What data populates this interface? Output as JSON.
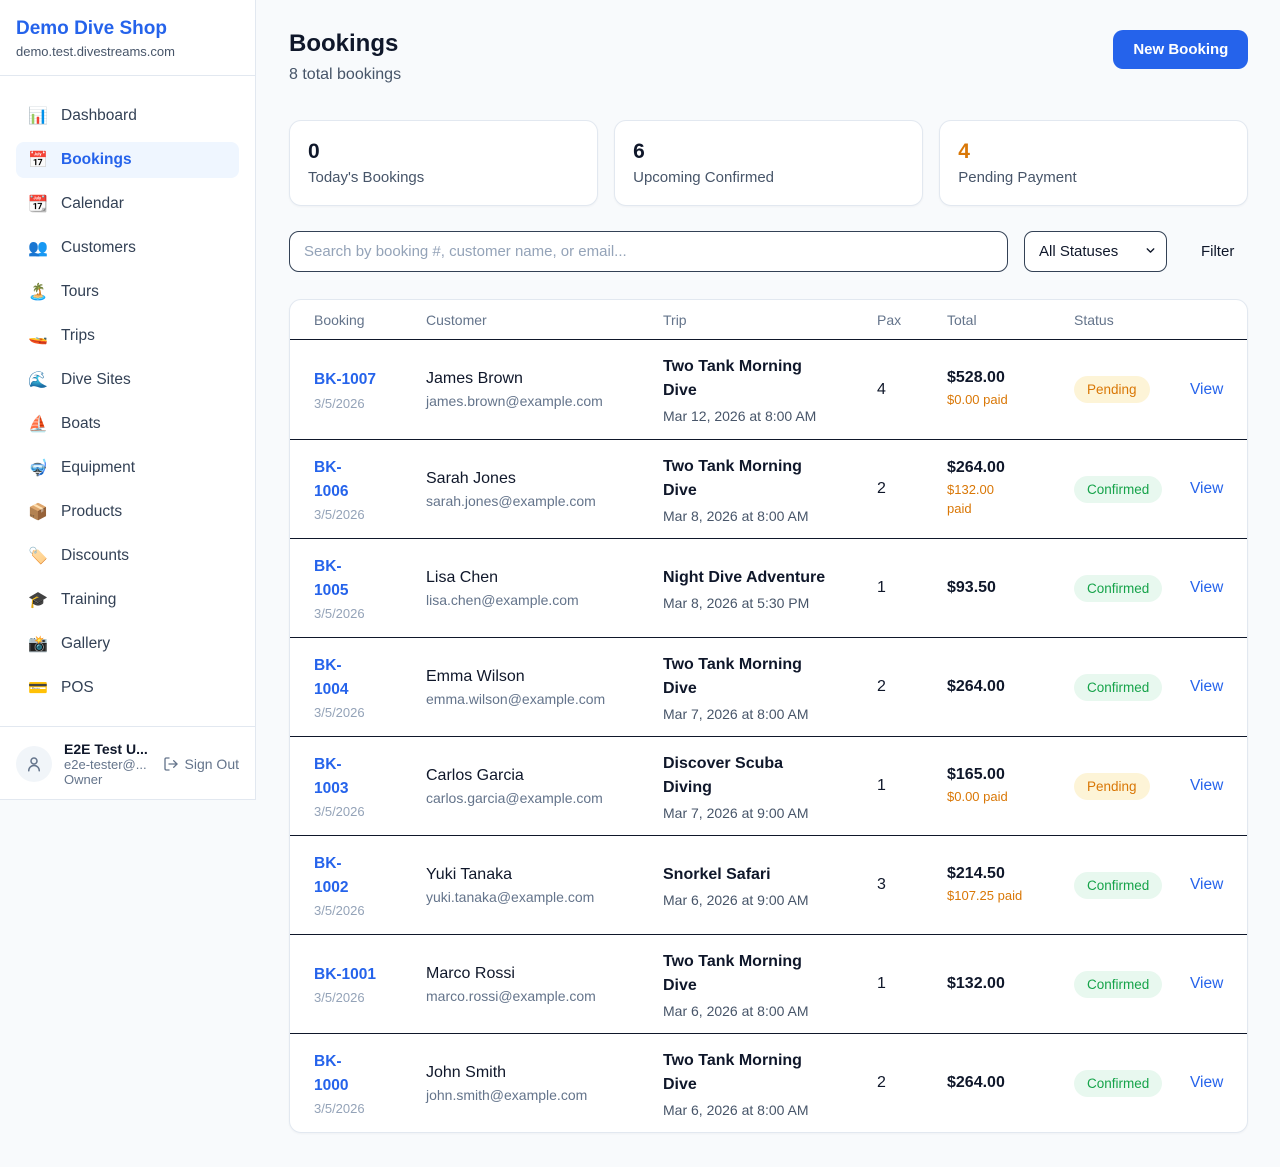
{
  "sidebar": {
    "shop_name": "Demo Dive Shop",
    "domain": "demo.test.divestreams.com",
    "items": [
      {
        "name": "dashboard",
        "icon": "📊",
        "label": "Dashboard",
        "active": false
      },
      {
        "name": "bookings",
        "icon": "📅",
        "label": "Bookings",
        "active": true
      },
      {
        "name": "calendar",
        "icon": "📆",
        "label": "Calendar",
        "active": false
      },
      {
        "name": "customers",
        "icon": "👥",
        "label": "Customers",
        "active": false
      },
      {
        "name": "tours",
        "icon": "🏝️",
        "label": "Tours",
        "active": false
      },
      {
        "name": "trips",
        "icon": "🚤",
        "label": "Trips",
        "active": false
      },
      {
        "name": "dive-sites",
        "icon": "🌊",
        "label": "Dive Sites",
        "active": false
      },
      {
        "name": "boats",
        "icon": "⛵",
        "label": "Boats",
        "active": false
      },
      {
        "name": "equipment",
        "icon": "🤿",
        "label": "Equipment",
        "active": false
      },
      {
        "name": "products",
        "icon": "📦",
        "label": "Products",
        "active": false
      },
      {
        "name": "discounts",
        "icon": "🏷️",
        "label": "Discounts",
        "active": false
      },
      {
        "name": "training",
        "icon": "🎓",
        "label": "Training",
        "active": false
      },
      {
        "name": "gallery",
        "icon": "📸",
        "label": "Gallery",
        "active": false
      },
      {
        "name": "pos",
        "icon": "💳",
        "label": "POS",
        "active": false
      }
    ],
    "user": {
      "name": "E2E Test U...",
      "email": "e2e-tester@...",
      "role": "Owner",
      "sign_out_label": "Sign Out"
    }
  },
  "header": {
    "title": "Bookings",
    "subtitle": "8 total bookings",
    "new_booking_label": "New Booking"
  },
  "stats": [
    {
      "value": "0",
      "label": "Today's Bookings",
      "color": "#0f172a"
    },
    {
      "value": "6",
      "label": "Upcoming Confirmed",
      "color": "#0f172a"
    },
    {
      "value": "4",
      "label": "Pending Payment",
      "color": "#d97706"
    }
  ],
  "filters": {
    "search_placeholder": "Search by booking #, customer name, or email...",
    "status_selected": "All Statuses",
    "filter_label": "Filter"
  },
  "table": {
    "columns": [
      "Booking",
      "Customer",
      "Trip",
      "Pax",
      "Total",
      "Status"
    ],
    "view_label": "View",
    "rows": [
      {
        "id_lines": [
          "BK-1007"
        ],
        "date": "3/5/2026",
        "customer": "James Brown",
        "email": "james.brown@example.com",
        "trip_lines": [
          "Two Tank Morning",
          "Dive"
        ],
        "trip_datetime": "Mar 12, 2026 at 8:00 AM",
        "pax": "4",
        "total": "$528.00",
        "paid_lines": [
          "$0.00 paid"
        ],
        "status": "Pending"
      },
      {
        "id_lines": [
          "BK-",
          "1006"
        ],
        "date": "3/5/2026",
        "customer": "Sarah Jones",
        "email": "sarah.jones@example.com",
        "trip_lines": [
          "Two Tank Morning",
          "Dive"
        ],
        "trip_datetime": "Mar 8, 2026 at 8:00 AM",
        "pax": "2",
        "total": "$264.00",
        "paid_lines": [
          "$132.00",
          "paid"
        ],
        "status": "Confirmed"
      },
      {
        "id_lines": [
          "BK-",
          "1005"
        ],
        "date": "3/5/2026",
        "customer": "Lisa Chen",
        "email": "lisa.chen@example.com",
        "trip_lines": [
          "Night Dive Adventure"
        ],
        "trip_datetime": "Mar 8, 2026 at 5:30 PM",
        "pax": "1",
        "total": "$93.50",
        "paid_lines": [],
        "status": "Confirmed"
      },
      {
        "id_lines": [
          "BK-",
          "1004"
        ],
        "date": "3/5/2026",
        "customer": "Emma Wilson",
        "email": "emma.wilson@example.com",
        "trip_lines": [
          "Two Tank Morning",
          "Dive"
        ],
        "trip_datetime": "Mar 7, 2026 at 8:00 AM",
        "pax": "2",
        "total": "$264.00",
        "paid_lines": [],
        "status": "Confirmed"
      },
      {
        "id_lines": [
          "BK-",
          "1003"
        ],
        "date": "3/5/2026",
        "customer": "Carlos Garcia",
        "email": "carlos.garcia@example.com",
        "trip_lines": [
          "Discover Scuba",
          "Diving"
        ],
        "trip_datetime": "Mar 7, 2026 at 9:00 AM",
        "pax": "1",
        "total": "$165.00",
        "paid_lines": [
          "$0.00 paid"
        ],
        "status": "Pending"
      },
      {
        "id_lines": [
          "BK-",
          "1002"
        ],
        "date": "3/5/2026",
        "customer": "Yuki Tanaka",
        "email": "yuki.tanaka@example.com",
        "trip_lines": [
          "Snorkel Safari"
        ],
        "trip_datetime": "Mar 6, 2026 at 9:00 AM",
        "pax": "3",
        "total": "$214.50",
        "paid_lines": [
          "$107.25 paid"
        ],
        "status": "Confirmed"
      },
      {
        "id_lines": [
          "BK-1001"
        ],
        "date": "3/5/2026",
        "customer": "Marco Rossi",
        "email": "marco.rossi@example.com",
        "trip_lines": [
          "Two Tank Morning",
          "Dive"
        ],
        "trip_datetime": "Mar 6, 2026 at 8:00 AM",
        "pax": "1",
        "total": "$132.00",
        "paid_lines": [],
        "status": "Confirmed"
      },
      {
        "id_lines": [
          "BK-",
          "1000"
        ],
        "date": "3/5/2026",
        "customer": "John Smith",
        "email": "john.smith@example.com",
        "trip_lines": [
          "Two Tank Morning",
          "Dive"
        ],
        "trip_datetime": "Mar 6, 2026 at 8:00 AM",
        "pax": "2",
        "total": "$264.00",
        "paid_lines": [],
        "status": "Confirmed"
      }
    ]
  },
  "colors": {
    "accent": "#2563eb",
    "warning": "#d97706",
    "status": {
      "Pending": {
        "text": "#d97706",
        "bg": "#fdf4d7"
      },
      "Confirmed": {
        "text": "#16a34a",
        "bg": "#e8f8ef"
      }
    }
  }
}
